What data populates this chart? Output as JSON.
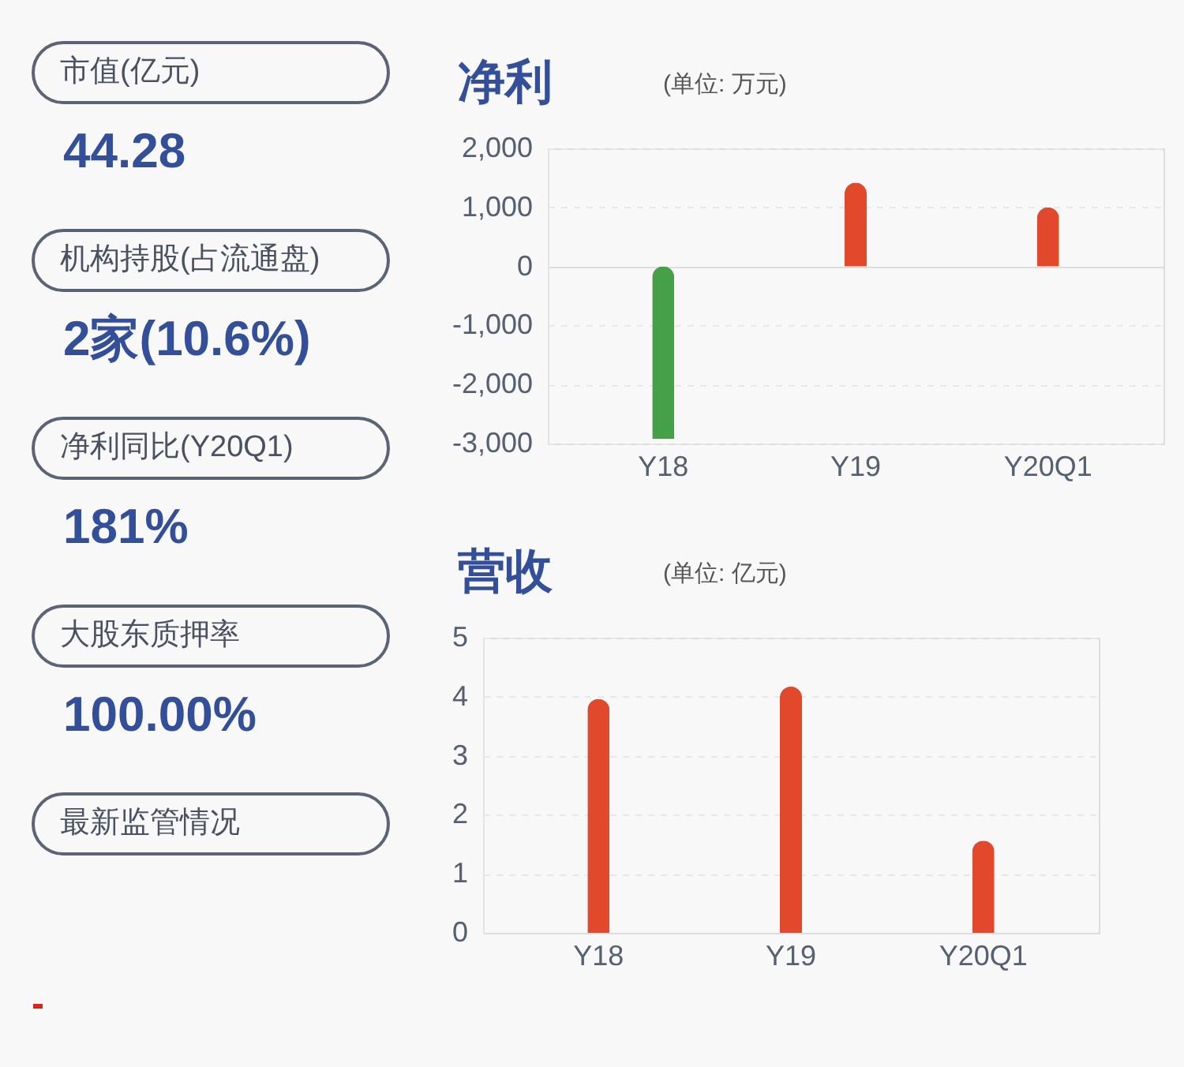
{
  "chart_data": [
    {
      "type": "other",
      "annotations": [
        "市值(亿元)",
        "44.28",
        "机构持股(占流通盘)",
        "2家(10.6%)",
        "净利同比(Y20Q1)",
        "181%",
        "大股东质押率",
        "100.00%",
        "最新监管情况"
      ]
    },
    {
      "type": "bar",
      "title": "净利",
      "subtitle": "(单位: 万元)",
      "categories": [
        "Y18",
        "Y19",
        "Y20Q1"
      ],
      "values": [
        -2920,
        1420,
        1000
      ],
      "colors": [
        "#45a047",
        "#e2482b",
        "#e2482b"
      ],
      "ylim": [
        -3000,
        2000
      ],
      "yticks": [
        {
          "value": -3000,
          "label": "-3,000"
        },
        {
          "value": -2000,
          "label": "-2,000"
        },
        {
          "value": -1000,
          "label": "-1,000"
        },
        0,
        {
          "value": 1000,
          "label": "1,000"
        },
        {
          "value": 2000,
          "label": "2,000"
        }
      ],
      "grid": "y",
      "legend": false
    },
    {
      "type": "bar",
      "title": "营收",
      "subtitle": "(单位: 亿元)",
      "categories": [
        "Y18",
        "Y19",
        "Y20Q1"
      ],
      "values": [
        3.96,
        4.17,
        1.56
      ],
      "colors": [
        "#e2482b",
        "#e2482b",
        "#e2482b"
      ],
      "ylim": [
        0,
        5
      ],
      "yticks": [
        0,
        1,
        2,
        3,
        4,
        5
      ],
      "grid": "y",
      "legend": false
    }
  ]
}
